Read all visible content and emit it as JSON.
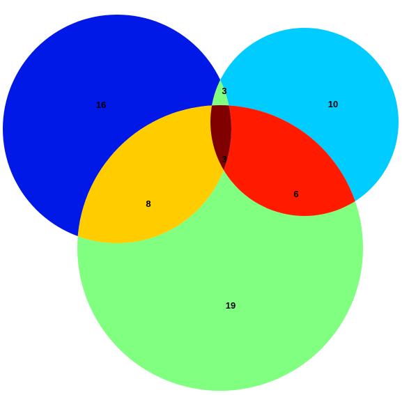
{
  "colors": {
    "set_a_only": "#0019E6",
    "set_b_only": "#00CCFF",
    "set_c_only": "#80FF80",
    "ab_only": "#80FF80",
    "ac_only": "#FFCC00",
    "bc_only": "#FF1A00",
    "abc": "#800000"
  },
  "regions": {
    "a_only": "16",
    "b_only": "10",
    "c_only": "19",
    "ab": "3",
    "ac": "8",
    "bc": "6",
    "abc": "3"
  }
}
